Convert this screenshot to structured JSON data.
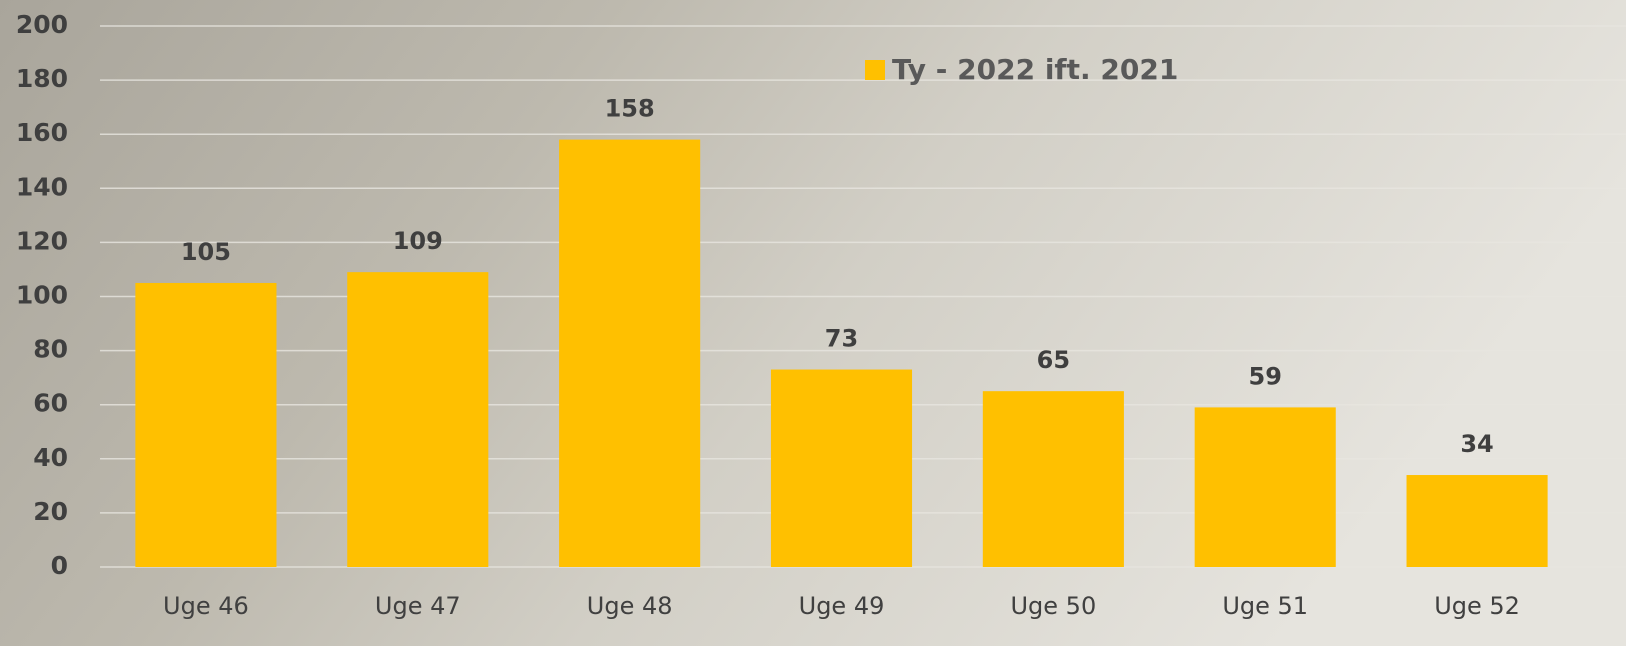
{
  "chart_data": {
    "type": "bar",
    "categories": [
      "Uge 46",
      "Uge 47",
      "Uge 48",
      "Uge 49",
      "Uge 50",
      "Uge 51",
      "Uge 52"
    ],
    "series": [
      {
        "name": "Ty - 2022 ift. 2021",
        "color": "#ffc000",
        "values": [
          105,
          109,
          158,
          73,
          65,
          59,
          34
        ]
      }
    ],
    "ylim": [
      0,
      200
    ],
    "yticks": [
      0,
      20,
      40,
      60,
      80,
      100,
      120,
      140,
      160,
      180,
      200
    ],
    "grid": true,
    "legend": "top-right"
  }
}
